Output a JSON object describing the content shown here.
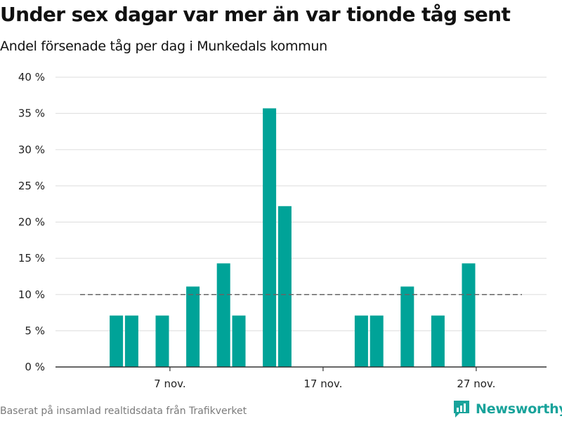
{
  "chart_data": {
    "type": "bar",
    "title": "Under sex dagar var mer än var tionde tåg sent",
    "subtitle": "Andel försenade tåg per dag i Munkedals kommun",
    "source": "Baserat på insamlad realtidsdata från Trafikverket",
    "brand": "Newsworthy",
    "ylim": [
      0,
      40
    ],
    "y_ticks": [
      0,
      5,
      10,
      15,
      20,
      25,
      30,
      35,
      40
    ],
    "y_tick_labels": [
      "0 %",
      "5 %",
      "10 %",
      "15 %",
      "20 %",
      "25 %",
      "30 %",
      "35 %",
      "40 %"
    ],
    "x_tick_labels": [
      {
        "date": "7 nov.",
        "label": "7 nov."
      },
      {
        "date": "17 nov.",
        "label": "17 nov."
      },
      {
        "date": "27 nov.",
        "label": "27 nov."
      }
    ],
    "categories": [
      "1 nov.",
      "2 nov.",
      "3 nov.",
      "4 nov.",
      "5 nov.",
      "6 nov.",
      "7 nov.",
      "8 nov.",
      "9 nov.",
      "10 nov.",
      "11 nov.",
      "12 nov.",
      "13 nov.",
      "14 nov.",
      "15 nov.",
      "16 nov.",
      "17 nov.",
      "18 nov.",
      "19 nov.",
      "20 nov.",
      "21 nov.",
      "22 nov.",
      "23 nov.",
      "24 nov.",
      "25 nov.",
      "26 nov.",
      "27 nov.",
      "28 nov.",
      "29 nov.",
      "30 nov."
    ],
    "values": [
      null,
      null,
      7.1,
      7.1,
      null,
      7.1,
      null,
      11.1,
      null,
      14.3,
      7.1,
      null,
      35.7,
      22.2,
      null,
      null,
      null,
      null,
      7.1,
      7.1,
      null,
      11.1,
      null,
      7.1,
      null,
      14.3,
      null,
      null,
      null,
      null
    ],
    "reference_line": {
      "value": 10
    },
    "grid": true,
    "colors": {
      "bar": "#00a398",
      "reference": "#666666",
      "grid": "#dddddd",
      "axis": "#333333",
      "brand": "#19a39b"
    }
  }
}
